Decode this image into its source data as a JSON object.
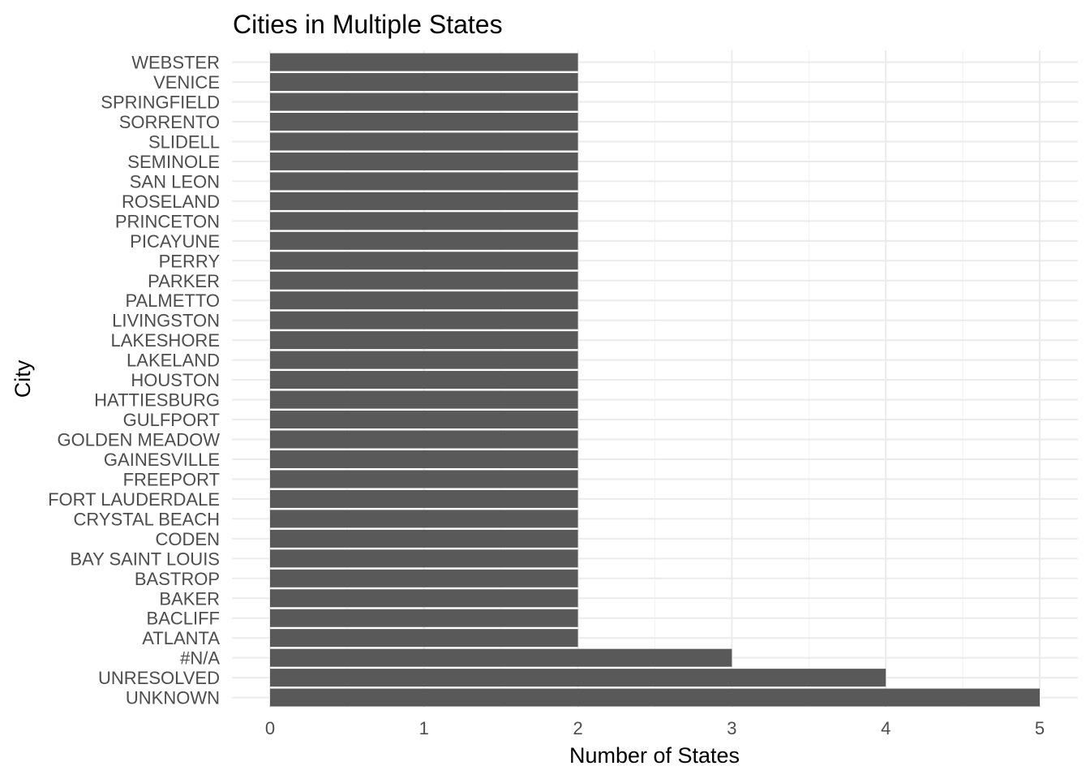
{
  "chart_data": {
    "type": "bar",
    "orientation": "horizontal",
    "title": "Cities in Multiple States",
    "xlabel": "Number of States",
    "ylabel": "City",
    "xlim": [
      0,
      5
    ],
    "x_ticks": [
      "0",
      "1",
      "2",
      "3",
      "4",
      "5"
    ],
    "grid": true,
    "bar_color": "#595959",
    "categories": [
      "UNKNOWN",
      "UNRESOLVED",
      "#N/A",
      "ATLANTA",
      "BACLIFF",
      "BAKER",
      "BASTROP",
      "BAY SAINT LOUIS",
      "CODEN",
      "CRYSTAL BEACH",
      "FORT LAUDERDALE",
      "FREEPORT",
      "GAINESVILLE",
      "GOLDEN MEADOW",
      "GULFPORT",
      "HATTIESBURG",
      "HOUSTON",
      "LAKELAND",
      "LAKESHORE",
      "LIVINGSTON",
      "PALMETTO",
      "PARKER",
      "PERRY",
      "PICAYUNE",
      "PRINCETON",
      "ROSELAND",
      "SAN LEON",
      "SEMINOLE",
      "SLIDELL",
      "SORRENTO",
      "SPRINGFIELD",
      "VENICE",
      "WEBSTER"
    ],
    "values": [
      5,
      4,
      3,
      2,
      2,
      2,
      2,
      2,
      2,
      2,
      2,
      2,
      2,
      2,
      2,
      2,
      2,
      2,
      2,
      2,
      2,
      2,
      2,
      2,
      2,
      2,
      2,
      2,
      2,
      2,
      2,
      2,
      2
    ]
  }
}
